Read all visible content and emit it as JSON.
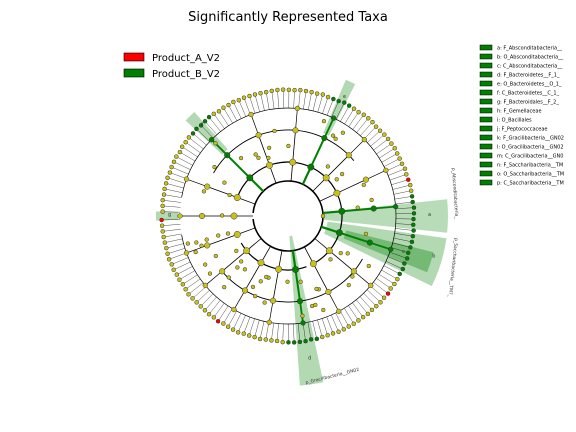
{
  "title": "Significantly Represented Taxa",
  "groups": [
    {
      "label": "Product_A_V2",
      "color": "#ff0000"
    },
    {
      "label": "Product_B_V2",
      "color": "#008000"
    }
  ],
  "neutral_color": "#c8c11a",
  "clade_keys": [
    "a: F_Absconditabacteria__",
    "b: O_Absconditabacteria__",
    "c: C_Absconditabacteria__",
    "d: F_Bacteroidetes__F_1_",
    "e: O_Bacteroidetes__O_1_",
    "f: C_Bacteroidetes__C_1_",
    "g: F_Bacteroidales__F_2_",
    "h: F_Gemellaceae",
    "i: O_Bacillales",
    "j: F_Peptococcaceae",
    "k: F_Gracilibacteria__GN02",
    "l: O_Gracilibacteria__GN02",
    "m: C_Gracilibacteria__GN0",
    "n: F_Saccharibacteria__TM",
    "o: O_Saccharibacteria__TM",
    "p: C_Saccharibacteria__TM"
  ],
  "clade_side_labels": [
    "p_Absconditabacteria_",
    "p_Saccharibacteria__TM7_",
    "p_Gracilibacteria__GN02"
  ],
  "clade_letters": [
    "a",
    "b",
    "c",
    "d",
    "e",
    "f",
    "g",
    "h",
    "i",
    "j",
    "k",
    "l",
    "m",
    "n",
    "o",
    "p"
  ]
}
